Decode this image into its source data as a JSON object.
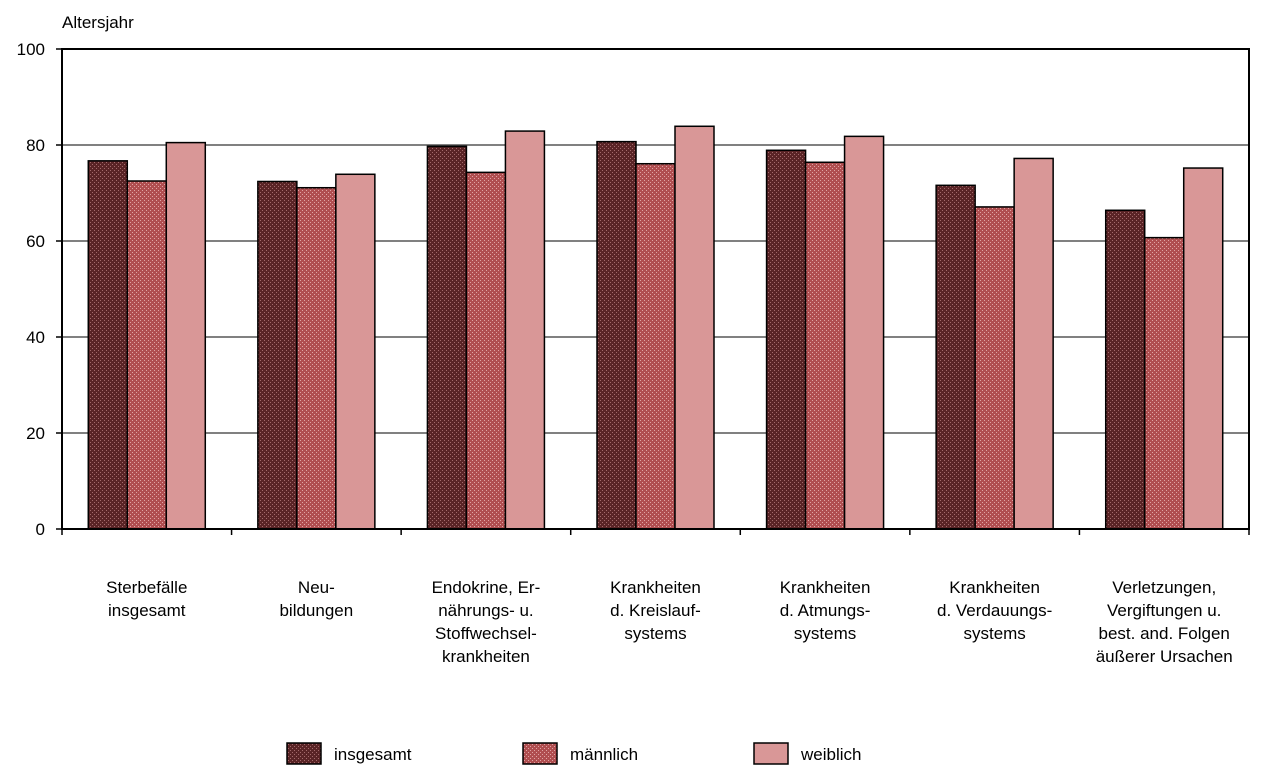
{
  "chart_data": {
    "type": "bar",
    "title": "",
    "ylabel": "Altersjahr",
    "xlabel": "",
    "ylim": [
      0,
      100
    ],
    "yticks": [
      0,
      20,
      40,
      60,
      80,
      100
    ],
    "grid": true,
    "legend_position": "bottom",
    "categories": [
      [
        "Sterbefälle",
        "insgesamt"
      ],
      [
        "Neu-",
        "bildungen"
      ],
      [
        "Endokrine, Er-",
        "nährungs- u.",
        "Stoffwechsel-",
        "krankheiten"
      ],
      [
        "Krankheiten",
        "d. Kreislauf-",
        "systems"
      ],
      [
        "Krankheiten",
        "d. Atmungs-",
        "systems"
      ],
      [
        "Krankheiten",
        "d. Verdauungs-",
        "systems"
      ],
      [
        "Verletzungen,",
        "Vergiftungen u.",
        "best. and. Folgen",
        "äußerer Ursachen"
      ]
    ],
    "series": [
      {
        "name": "insgesamt",
        "color": "#6b2e30",
        "pattern": "dots-dark",
        "values": [
          76.7,
          72.4,
          79.7,
          80.7,
          78.9,
          71.6,
          66.4
        ]
      },
      {
        "name": "männlich",
        "color": "#b25355",
        "pattern": "dots-mid",
        "values": [
          72.5,
          71.1,
          74.3,
          76.1,
          76.4,
          67.1,
          60.7
        ]
      },
      {
        "name": "weiblich",
        "color": "#d99797",
        "pattern": "solid",
        "values": [
          80.5,
          73.9,
          82.9,
          83.9,
          81.8,
          77.2,
          75.2
        ]
      }
    ]
  }
}
